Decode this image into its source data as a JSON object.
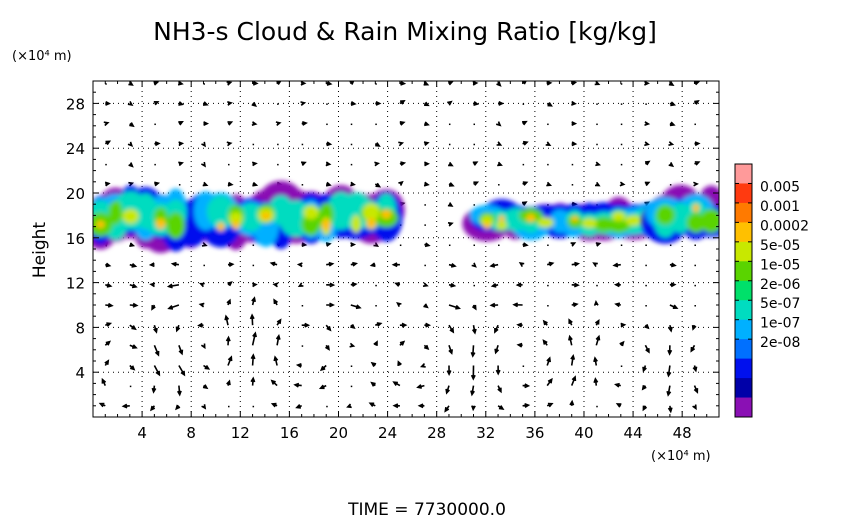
{
  "chart_data": {
    "type": "heatmap",
    "title": "NH3-s Cloud & Rain Mixing Ratio [kg/kg]",
    "ylabel": "Height",
    "y_unit": "(×10⁴ m)",
    "x_unit": "(×10⁴ m)",
    "footer": "TIME  =  7730000.0",
    "xlim": [
      0,
      51
    ],
    "ylim": [
      0,
      30
    ],
    "xticks": [
      "4",
      "8",
      "12",
      "16",
      "20",
      "24",
      "28",
      "32",
      "36",
      "40",
      "44",
      "48"
    ],
    "yticks": [
      "4",
      "8",
      "12",
      "16",
      "20",
      "24",
      "28"
    ],
    "colorbar": {
      "labels": [
        "0.005",
        "0.001",
        "0.0002",
        "5e-05",
        "1e-05",
        "2e-06",
        "5e-07",
        "1e-07",
        "2e-08"
      ],
      "colors": [
        "#ff9a9a",
        "#ff3a10",
        "#ff7a00",
        "#ffc000",
        "#c8e800",
        "#5ad400",
        "#00e06a",
        "#00dcc0",
        "#00b0ff",
        "#0070ff",
        "#0010ee",
        "#0000a8",
        "#8a10b4"
      ]
    },
    "cloud_layers": [
      {
        "x_range": [
          0,
          24.5
        ],
        "height_range": [
          15.5,
          20
        ],
        "peak": "0.0002"
      },
      {
        "x_range": [
          31.5,
          47
        ],
        "height_range": [
          16,
          19
        ],
        "peak": "1e-05"
      },
      {
        "x_range": [
          46,
          51
        ],
        "height_range": [
          16,
          20
        ],
        "peak": "0.0002"
      }
    ],
    "wind_vectors": "present",
    "grid": true
  }
}
